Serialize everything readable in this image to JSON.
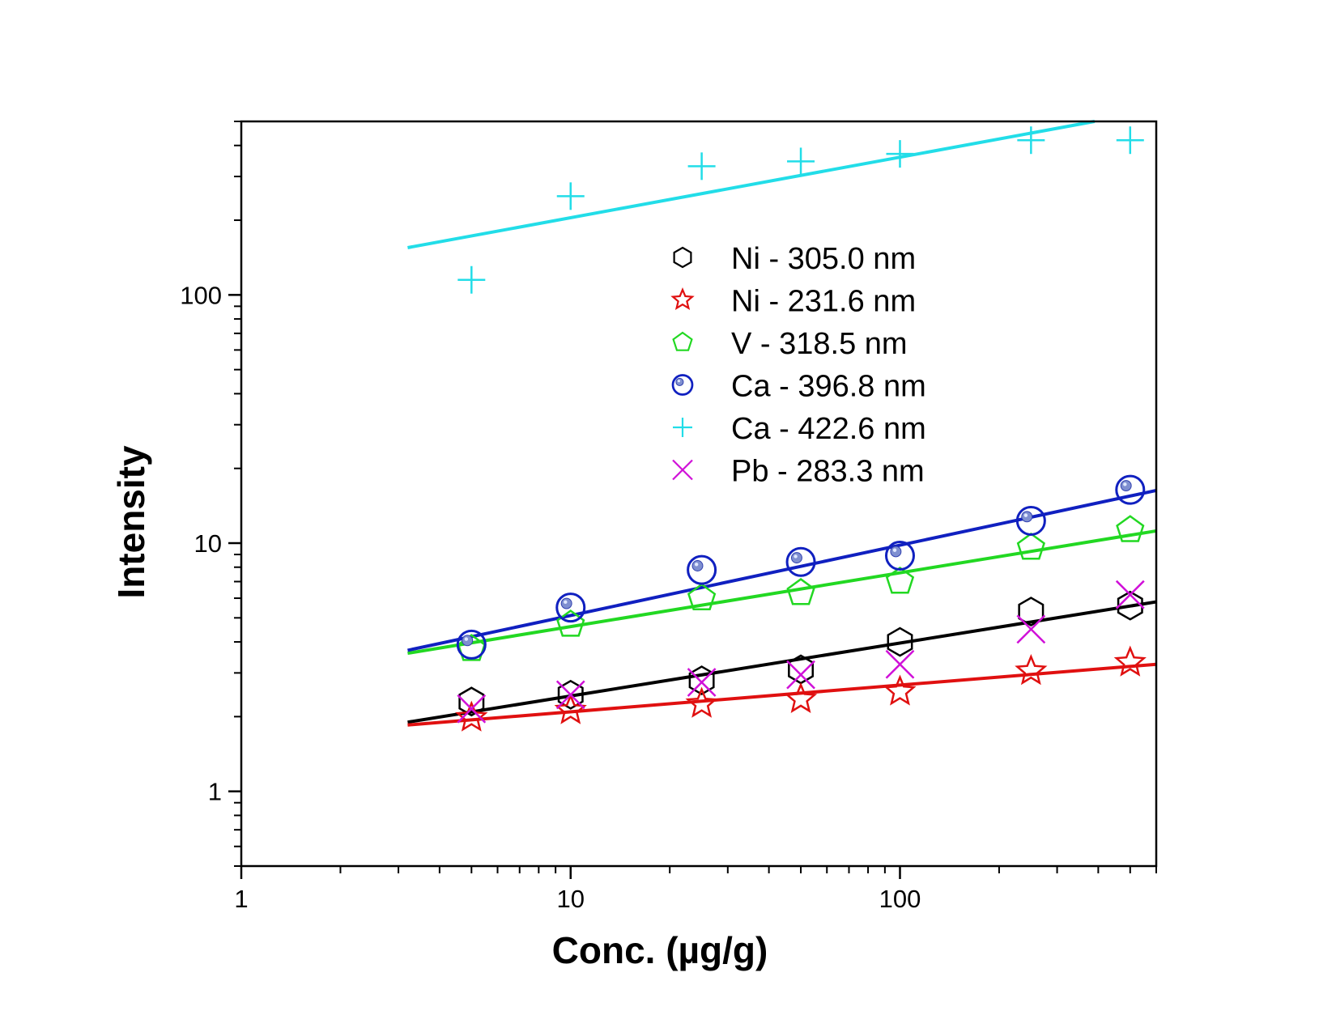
{
  "chart_data": {
    "type": "scatter",
    "title": "",
    "xlabel": "Conc. (µg/g)",
    "ylabel": "Intensity",
    "xscale": "log",
    "yscale": "log",
    "xlim": [
      1,
      600
    ],
    "ylim": [
      0.5,
      500
    ],
    "xticks": [
      {
        "value": 1,
        "label": "1"
      },
      {
        "value": 10,
        "label": "10"
      },
      {
        "value": 100,
        "label": "100"
      }
    ],
    "yticks": [
      {
        "value": 1,
        "label": "1"
      },
      {
        "value": 10,
        "label": "10"
      },
      {
        "value": 100,
        "label": "100"
      }
    ],
    "grid": false,
    "legend_position": "upper-center",
    "series": [
      {
        "name": "Ni - 305.0 nm",
        "marker": "hexagon",
        "color": "#000000",
        "x": [
          5,
          10,
          25,
          50,
          100,
          250,
          500
        ],
        "y": [
          2.3,
          2.45,
          2.8,
          3.1,
          4.0,
          5.3,
          5.6
        ],
        "fit": {
          "x": [
            3.2,
            600
          ],
          "y": [
            1.9,
            5.8
          ]
        }
      },
      {
        "name": "Ni - 231.6 nm",
        "marker": "star",
        "color": "#e01010",
        "x": [
          5,
          10,
          25,
          50,
          100,
          250,
          500
        ],
        "y": [
          1.98,
          2.12,
          2.25,
          2.35,
          2.52,
          3.05,
          3.3
        ],
        "fit": {
          "x": [
            3.2,
            600
          ],
          "y": [
            1.85,
            3.25
          ]
        }
      },
      {
        "name": "V - 318.5 nm",
        "marker": "pentagon",
        "color": "#22d822",
        "x": [
          5,
          10,
          25,
          50,
          100,
          250,
          500
        ],
        "y": [
          3.75,
          4.7,
          6.0,
          6.3,
          7.0,
          9.6,
          11.3
        ],
        "fit": {
          "x": [
            3.2,
            600
          ],
          "y": [
            3.6,
            11.2
          ]
        }
      },
      {
        "name": "Ca - 396.8 nm",
        "marker": "circle",
        "color": "#1020c0",
        "x": [
          5,
          10,
          25,
          50,
          100,
          250,
          500
        ],
        "y": [
          3.9,
          5.5,
          7.8,
          8.4,
          8.9,
          12.3,
          16.4
        ],
        "fit": {
          "x": [
            3.2,
            600
          ],
          "y": [
            3.7,
            16.3
          ]
        }
      },
      {
        "name": "Ca - 422.6 nm",
        "marker": "plus",
        "color": "#22dde8",
        "x": [
          5,
          10,
          25,
          50,
          100,
          250,
          500
        ],
        "y": [
          115,
          250,
          330,
          345,
          370,
          420,
          420
        ],
        "fit": {
          "x": [
            3.2,
            390
          ],
          "y": [
            155,
            500
          ]
        }
      },
      {
        "name": "Pb - 283.3 nm",
        "marker": "cross",
        "color": "#d010d8",
        "x": [
          5,
          10,
          25,
          50,
          100,
          250,
          500
        ],
        "y": [
          2.15,
          2.45,
          2.75,
          2.95,
          3.25,
          4.5,
          6.2
        ]
      }
    ]
  }
}
